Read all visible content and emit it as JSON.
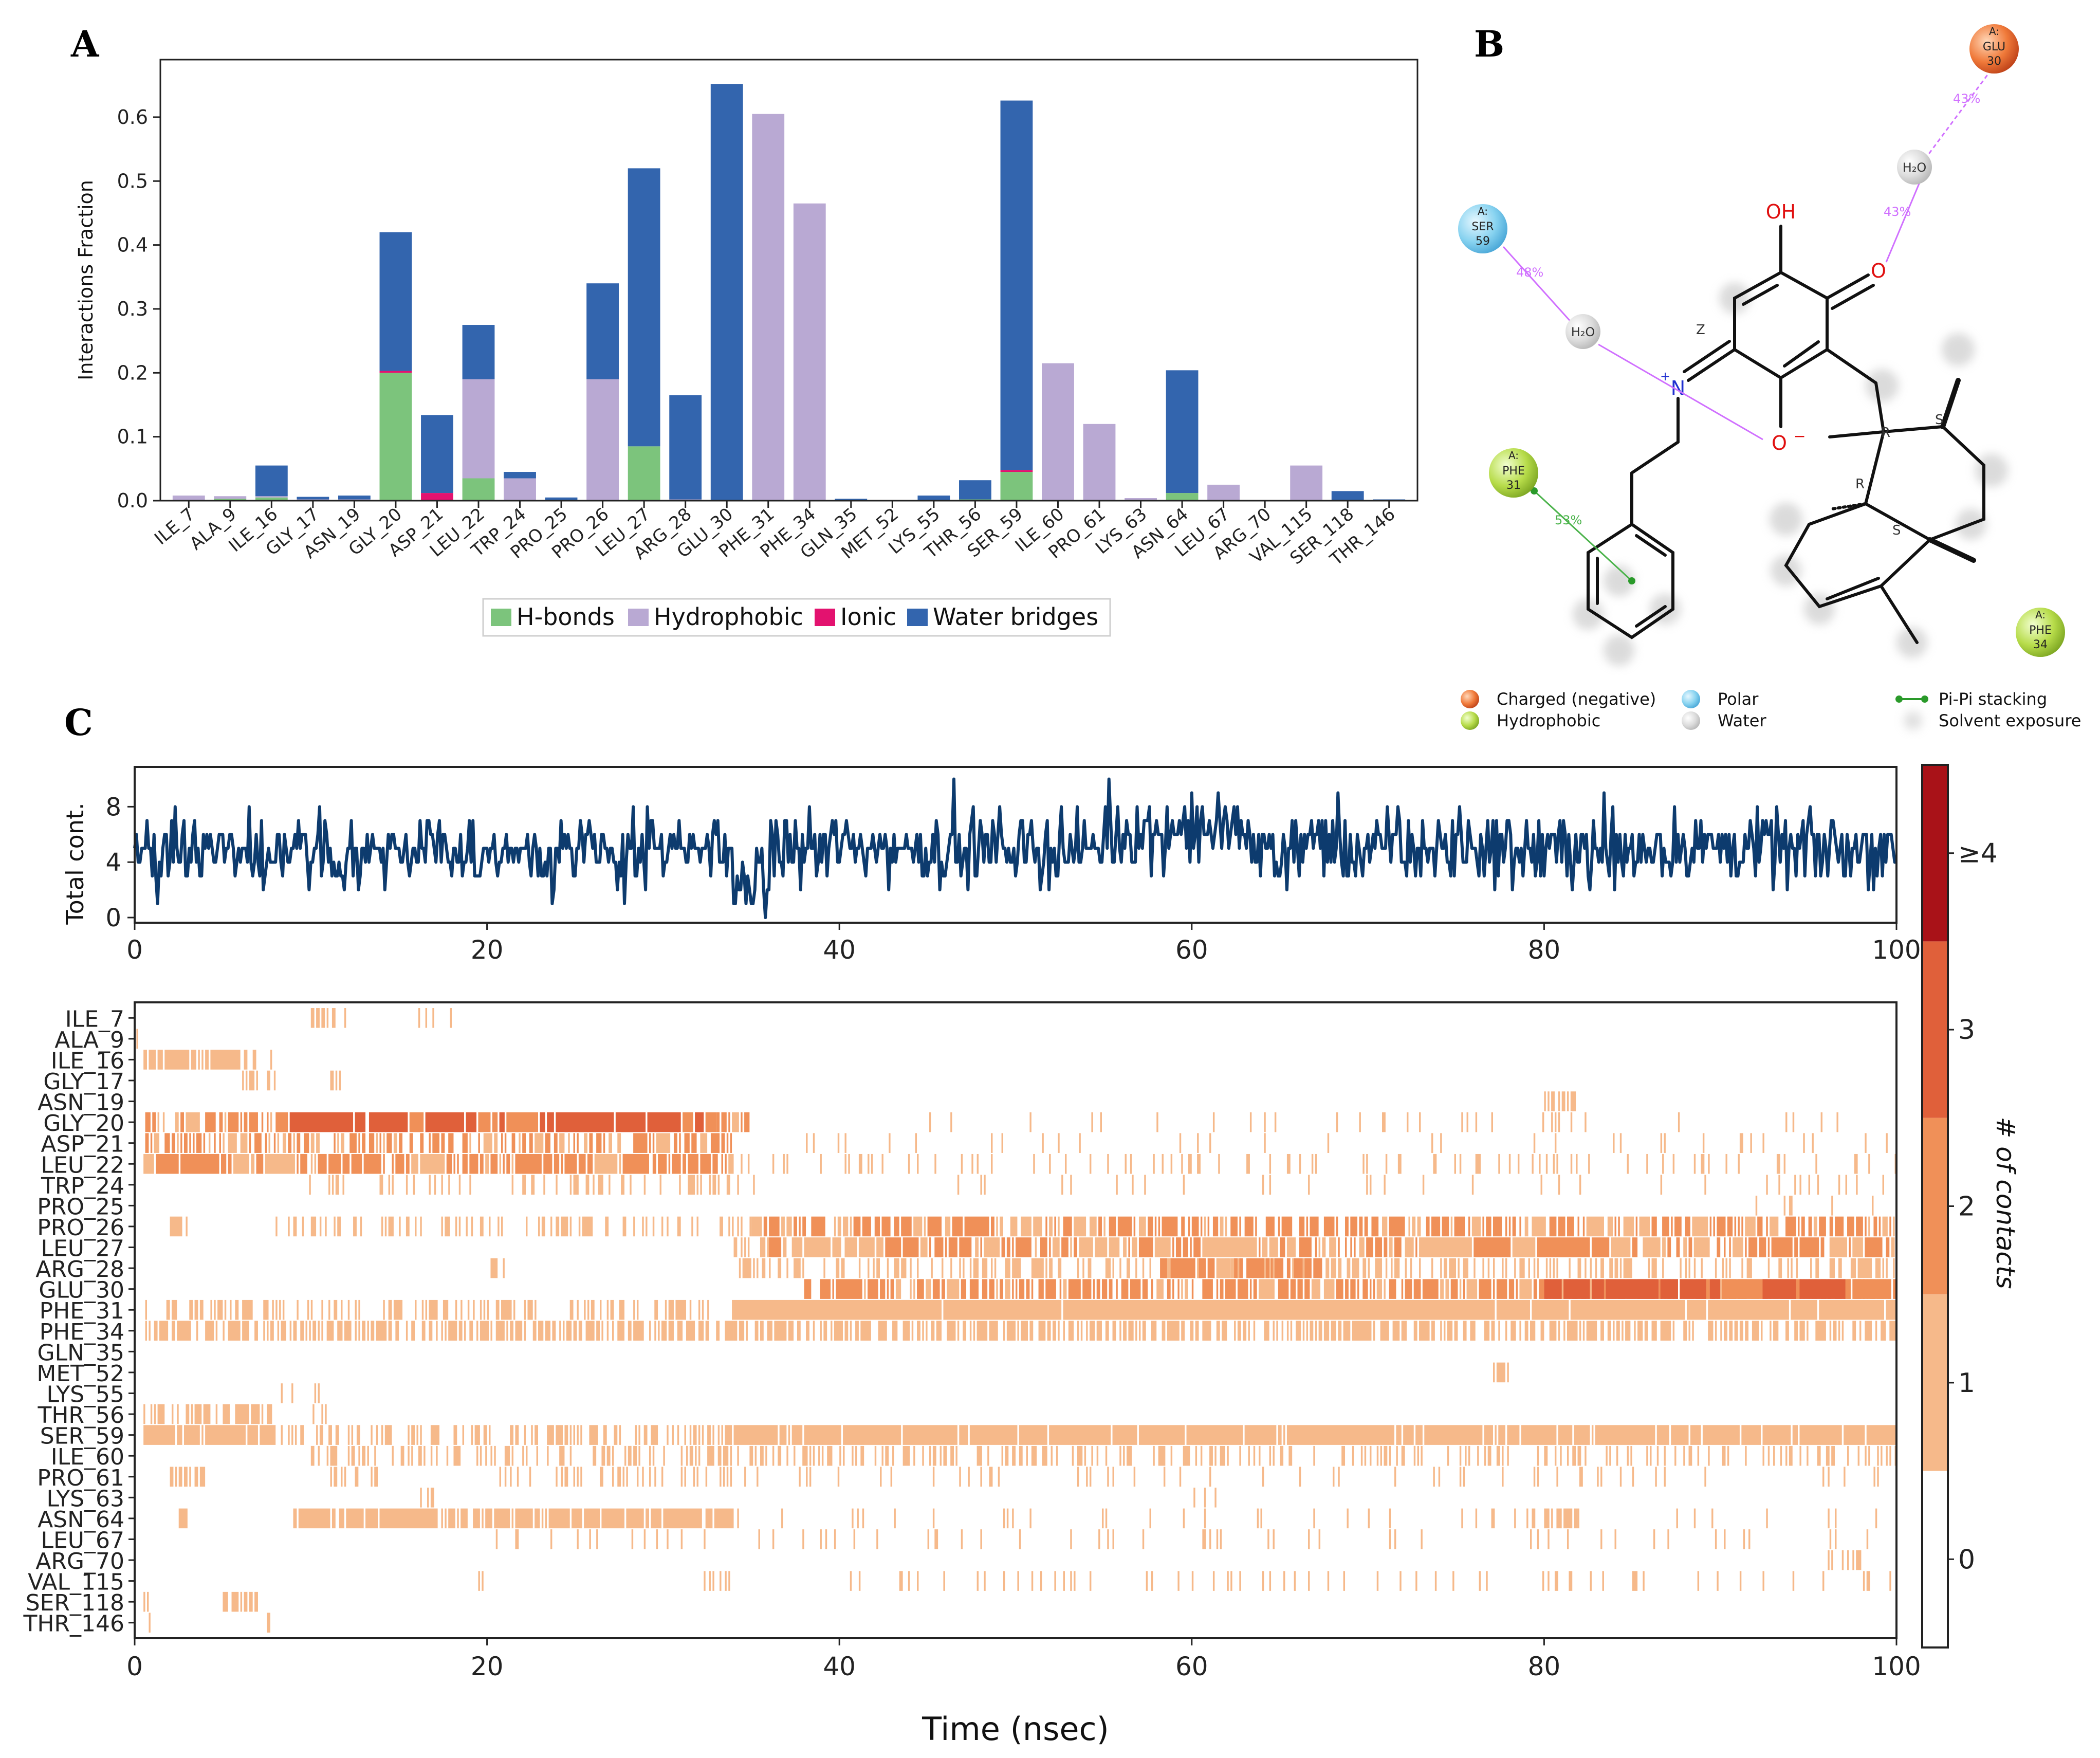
{
  "panels": {
    "a": "A",
    "b": "B",
    "c": "C"
  },
  "colors": {
    "hbond": "#7cc47c",
    "hydrophobic": "#b9a9d3",
    "ionic": "#e3126f",
    "water": "#3365ae",
    "line": "#0d3b6e",
    "cb0": "#ffffff",
    "cb1": "#f6b98a",
    "cb2": "#f09058",
    "cb3": "#e0603a",
    "cb4": "#a91218"
  },
  "chart_data": [
    {
      "id": "A",
      "type": "bar",
      "stacked": true,
      "ylabel": "Interactions Fraction",
      "ylim": [
        0,
        0.69
      ],
      "yticks": [
        "0.0",
        "0.1",
        "0.2",
        "0.3",
        "0.4",
        "0.5",
        "0.6"
      ],
      "categories": [
        "ILE_7",
        "ALA_9",
        "ILE_16",
        "GLY_17",
        "ASN_19",
        "GLY_20",
        "ASP_21",
        "LEU_22",
        "TRP_24",
        "PRO_25",
        "PRO_26",
        "LEU_27",
        "ARG_28",
        "GLU_30",
        "PHE_31",
        "PHE_34",
        "GLN_35",
        "MET_52",
        "LYS_55",
        "THR_56",
        "SER_59",
        "ILE_60",
        "PRO_61",
        "LYS_63",
        "ASN_64",
        "LEU_67",
        "ARG_70",
        "VAL_115",
        "SER_118",
        "THR_146"
      ],
      "series": [
        {
          "name": "H-bonds",
          "values": [
            0,
            0.003,
            0.005,
            0,
            0,
            0.2,
            0,
            0.035,
            0,
            0,
            0,
            0.085,
            0,
            0,
            0,
            0,
            0,
            0,
            0,
            0.002,
            0.045,
            0,
            0,
            0,
            0.012,
            0,
            0,
            0,
            0,
            0
          ]
        },
        {
          "name": "Hydrophobic",
          "values": [
            0.008,
            0.004,
            0.002,
            0.002,
            0.002,
            0,
            0,
            0.155,
            0.035,
            0,
            0.19,
            0,
            0.002,
            0,
            0.605,
            0.465,
            0,
            0,
            0,
            0,
            0,
            0.215,
            0.12,
            0.004,
            0,
            0.025,
            0,
            0.055,
            0,
            0
          ]
        },
        {
          "name": "Ionic",
          "values": [
            0,
            0,
            0,
            0,
            0,
            0.003,
            0.012,
            0,
            0,
            0,
            0,
            0,
            0,
            0,
            0,
            0,
            0,
            0,
            0,
            0,
            0.003,
            0,
            0,
            0,
            0,
            0,
            0,
            0,
            0,
            0
          ]
        },
        {
          "name": "Water bridges",
          "values": [
            0,
            0,
            0.048,
            0.004,
            0.006,
            0.217,
            0.122,
            0.085,
            0.01,
            0.005,
            0.15,
            0.435,
            0.163,
            0.652,
            0,
            0,
            0.003,
            0,
            0.008,
            0.03,
            0.578,
            0,
            0,
            0,
            0.192,
            0,
            0,
            0,
            0.015,
            0.002
          ]
        }
      ],
      "legend": [
        "H-bonds",
        "Hydrophobic",
        "Ionic",
        "Water bridges"
      ],
      "legend_position": "bottom-center"
    },
    {
      "id": "C-top",
      "type": "line",
      "ylabel": "Total cont.",
      "xlim": [
        0,
        100
      ],
      "ylim": [
        0,
        10.5
      ],
      "yticks": [
        "0",
        "4",
        "8"
      ],
      "xticks": [
        "0",
        "20",
        "40",
        "60",
        "80",
        "100"
      ],
      "seed": 17,
      "points": 1000,
      "mean_segments": [
        {
          "t": [
            0,
            34
          ],
          "mean": 4.7
        },
        {
          "t": [
            34,
            36
          ],
          "mean": 2.0
        },
        {
          "t": [
            36,
            55
          ],
          "mean": 5.0
        },
        {
          "t": [
            55,
            63
          ],
          "mean": 6.2
        },
        {
          "t": [
            63,
            100
          ],
          "mean": 5.0
        }
      ],
      "series": [
        {
          "name": "Total contacts",
          "x_range": [
            0,
            100
          ]
        }
      ]
    },
    {
      "id": "C-bottom",
      "type": "heatmap",
      "xlabel": "Time (nsec)",
      "xlim": [
        0,
        100
      ],
      "xticks": [
        "0",
        "20",
        "40",
        "60",
        "80",
        "100"
      ],
      "rows": [
        "ILE_7",
        "ALA_9",
        "ILE_16",
        "GLY_17",
        "ASN_19",
        "GLY_20",
        "ASP_21",
        "LEU_22",
        "TRP_24",
        "PRO_25",
        "PRO_26",
        "LEU_27",
        "ARG_28",
        "GLU_30",
        "PHE_31",
        "PHE_34",
        "GLN_35",
        "MET_52",
        "LYS_55",
        "THR_56",
        "SER_59",
        "ILE_60",
        "PRO_61",
        "LYS_63",
        "ASN_64",
        "LEU_67",
        "ARG_70",
        "VAL_115",
        "SER_118",
        "THR_146"
      ],
      "colorbar_label": "# of contacts",
      "colorbar_ticks": [
        "0",
        "1",
        "2",
        "3",
        "≥4"
      ],
      "note": "occupancy segments in ns: [start, end, density(0-1), contacts]",
      "segments": [
        [
          [
            10,
            12,
            0.5,
            1
          ],
          [
            16,
            18,
            0.3,
            1
          ]
        ],
        [
          [
            0,
            0.5,
            0.5,
            1
          ]
        ],
        [
          [
            0.5,
            6,
            0.85,
            1
          ],
          [
            6,
            8,
            0.3,
            1
          ]
        ],
        [
          [
            5,
            8,
            0.3,
            1
          ],
          [
            11,
            12,
            0.3,
            1
          ]
        ],
        [
          [
            80,
            82,
            0.6,
            1
          ]
        ],
        [
          [
            0.5,
            8,
            0.55,
            2
          ],
          [
            8,
            33,
            0.9,
            3
          ],
          [
            33,
            35,
            0.5,
            2
          ],
          [
            45,
            100,
            0.06,
            1
          ]
        ],
        [
          [
            0.5,
            34,
            0.55,
            2
          ],
          [
            34,
            100,
            0.05,
            1
          ]
        ],
        [
          [
            0.5,
            34,
            0.85,
            2
          ],
          [
            34,
            100,
            0.12,
            1
          ]
        ],
        [
          [
            9,
            34,
            0.25,
            1
          ],
          [
            34,
            100,
            0.05,
            1
          ]
        ],
        [
          [
            90,
            100,
            0.05,
            1
          ]
        ],
        [
          [
            2,
            3,
            0.5,
            1
          ],
          [
            8,
            35,
            0.3,
            1
          ],
          [
            35,
            100,
            0.7,
            2
          ]
        ],
        [
          [
            34,
            36,
            0.5,
            1
          ],
          [
            36,
            100,
            0.8,
            2
          ]
        ],
        [
          [
            20,
            21,
            0.4,
            1
          ],
          [
            34,
            100,
            0.35,
            1
          ],
          [
            58,
            68,
            0.8,
            2
          ]
        ],
        [
          [
            38,
            100,
            0.7,
            2
          ],
          [
            80,
            100,
            0.9,
            3
          ]
        ],
        [
          [
            0.5,
            34,
            0.4,
            1
          ],
          [
            34,
            100,
            0.98,
            1
          ]
        ],
        [
          [
            0.5,
            34,
            0.6,
            1
          ],
          [
            34,
            100,
            0.6,
            1
          ]
        ],
        [],
        [
          [
            77,
            78,
            0.5,
            1
          ]
        ],
        [
          [
            8,
            9,
            0.3,
            1
          ],
          [
            10,
            11,
            0.3,
            1
          ]
        ],
        [
          [
            0.5,
            8,
            0.5,
            1
          ],
          [
            10,
            11,
            0.3,
            1
          ]
        ],
        [
          [
            0.5,
            8,
            0.95,
            1
          ],
          [
            8,
            34,
            0.35,
            1
          ],
          [
            34,
            100,
            0.95,
            1
          ]
        ],
        [
          [
            10,
            34,
            0.35,
            1
          ],
          [
            34,
            100,
            0.3,
            1
          ]
        ],
        [
          [
            2,
            4,
            0.5,
            1
          ],
          [
            11,
            14,
            0.3,
            1
          ],
          [
            20,
            34,
            0.2,
            1
          ],
          [
            34,
            100,
            0.08,
            1
          ]
        ],
        [
          [
            16,
            17,
            0.3,
            1
          ],
          [
            60,
            62,
            0.3,
            1
          ]
        ],
        [
          [
            2.5,
            3,
            1,
            1
          ],
          [
            9,
            34,
            0.85,
            1
          ],
          [
            34,
            100,
            0.05,
            1
          ],
          [
            79,
            82,
            0.6,
            1
          ]
        ],
        [
          [
            20,
            34,
            0.1,
            1
          ],
          [
            34,
            100,
            0.07,
            1
          ]
        ],
        [
          [
            96,
            98,
            0.3,
            1
          ]
        ],
        [
          [
            19,
            20,
            0.3,
            1
          ],
          [
            32,
            34,
            0.3,
            1
          ],
          [
            40,
            100,
            0.1,
            1
          ]
        ],
        [
          [
            0.5,
            1,
            0.5,
            1
          ],
          [
            5,
            7,
            0.6,
            1
          ]
        ],
        [
          [
            0.5,
            1,
            0.4,
            1
          ],
          [
            7.5,
            8,
            0.5,
            1
          ]
        ]
      ]
    }
  ],
  "legend_b": {
    "charged_negative": "Charged (negative)",
    "polar": "Polar",
    "pi_pi": "Pi-Pi stacking",
    "hydrophobic": "Hydrophobic",
    "water": "Water",
    "solvent": "Solvent exposure"
  },
  "molecule": {
    "oh": "OH",
    "o_ketone": "O",
    "n": "N",
    "o_minus": "O",
    "minus": "−",
    "plus": "+",
    "z_label": "Z",
    "r1": "R",
    "r2": "R",
    "s1": "S",
    "s2": "S",
    "h2o_1": "H₂O",
    "h2o_2": "H₂O",
    "pct_ser": "48%",
    "pct_glu_1": "43%",
    "pct_glu_2": "43%",
    "pct_phe": "53%"
  },
  "residues": {
    "glu30": {
      "chain": "A:",
      "name": "GLU",
      "num": "30"
    },
    "ser59": {
      "chain": "A:",
      "name": "SER",
      "num": "59"
    },
    "phe31": {
      "chain": "A:",
      "name": "PHE",
      "num": "31"
    },
    "phe34": {
      "chain": "A:",
      "name": "PHE",
      "num": "34"
    }
  }
}
